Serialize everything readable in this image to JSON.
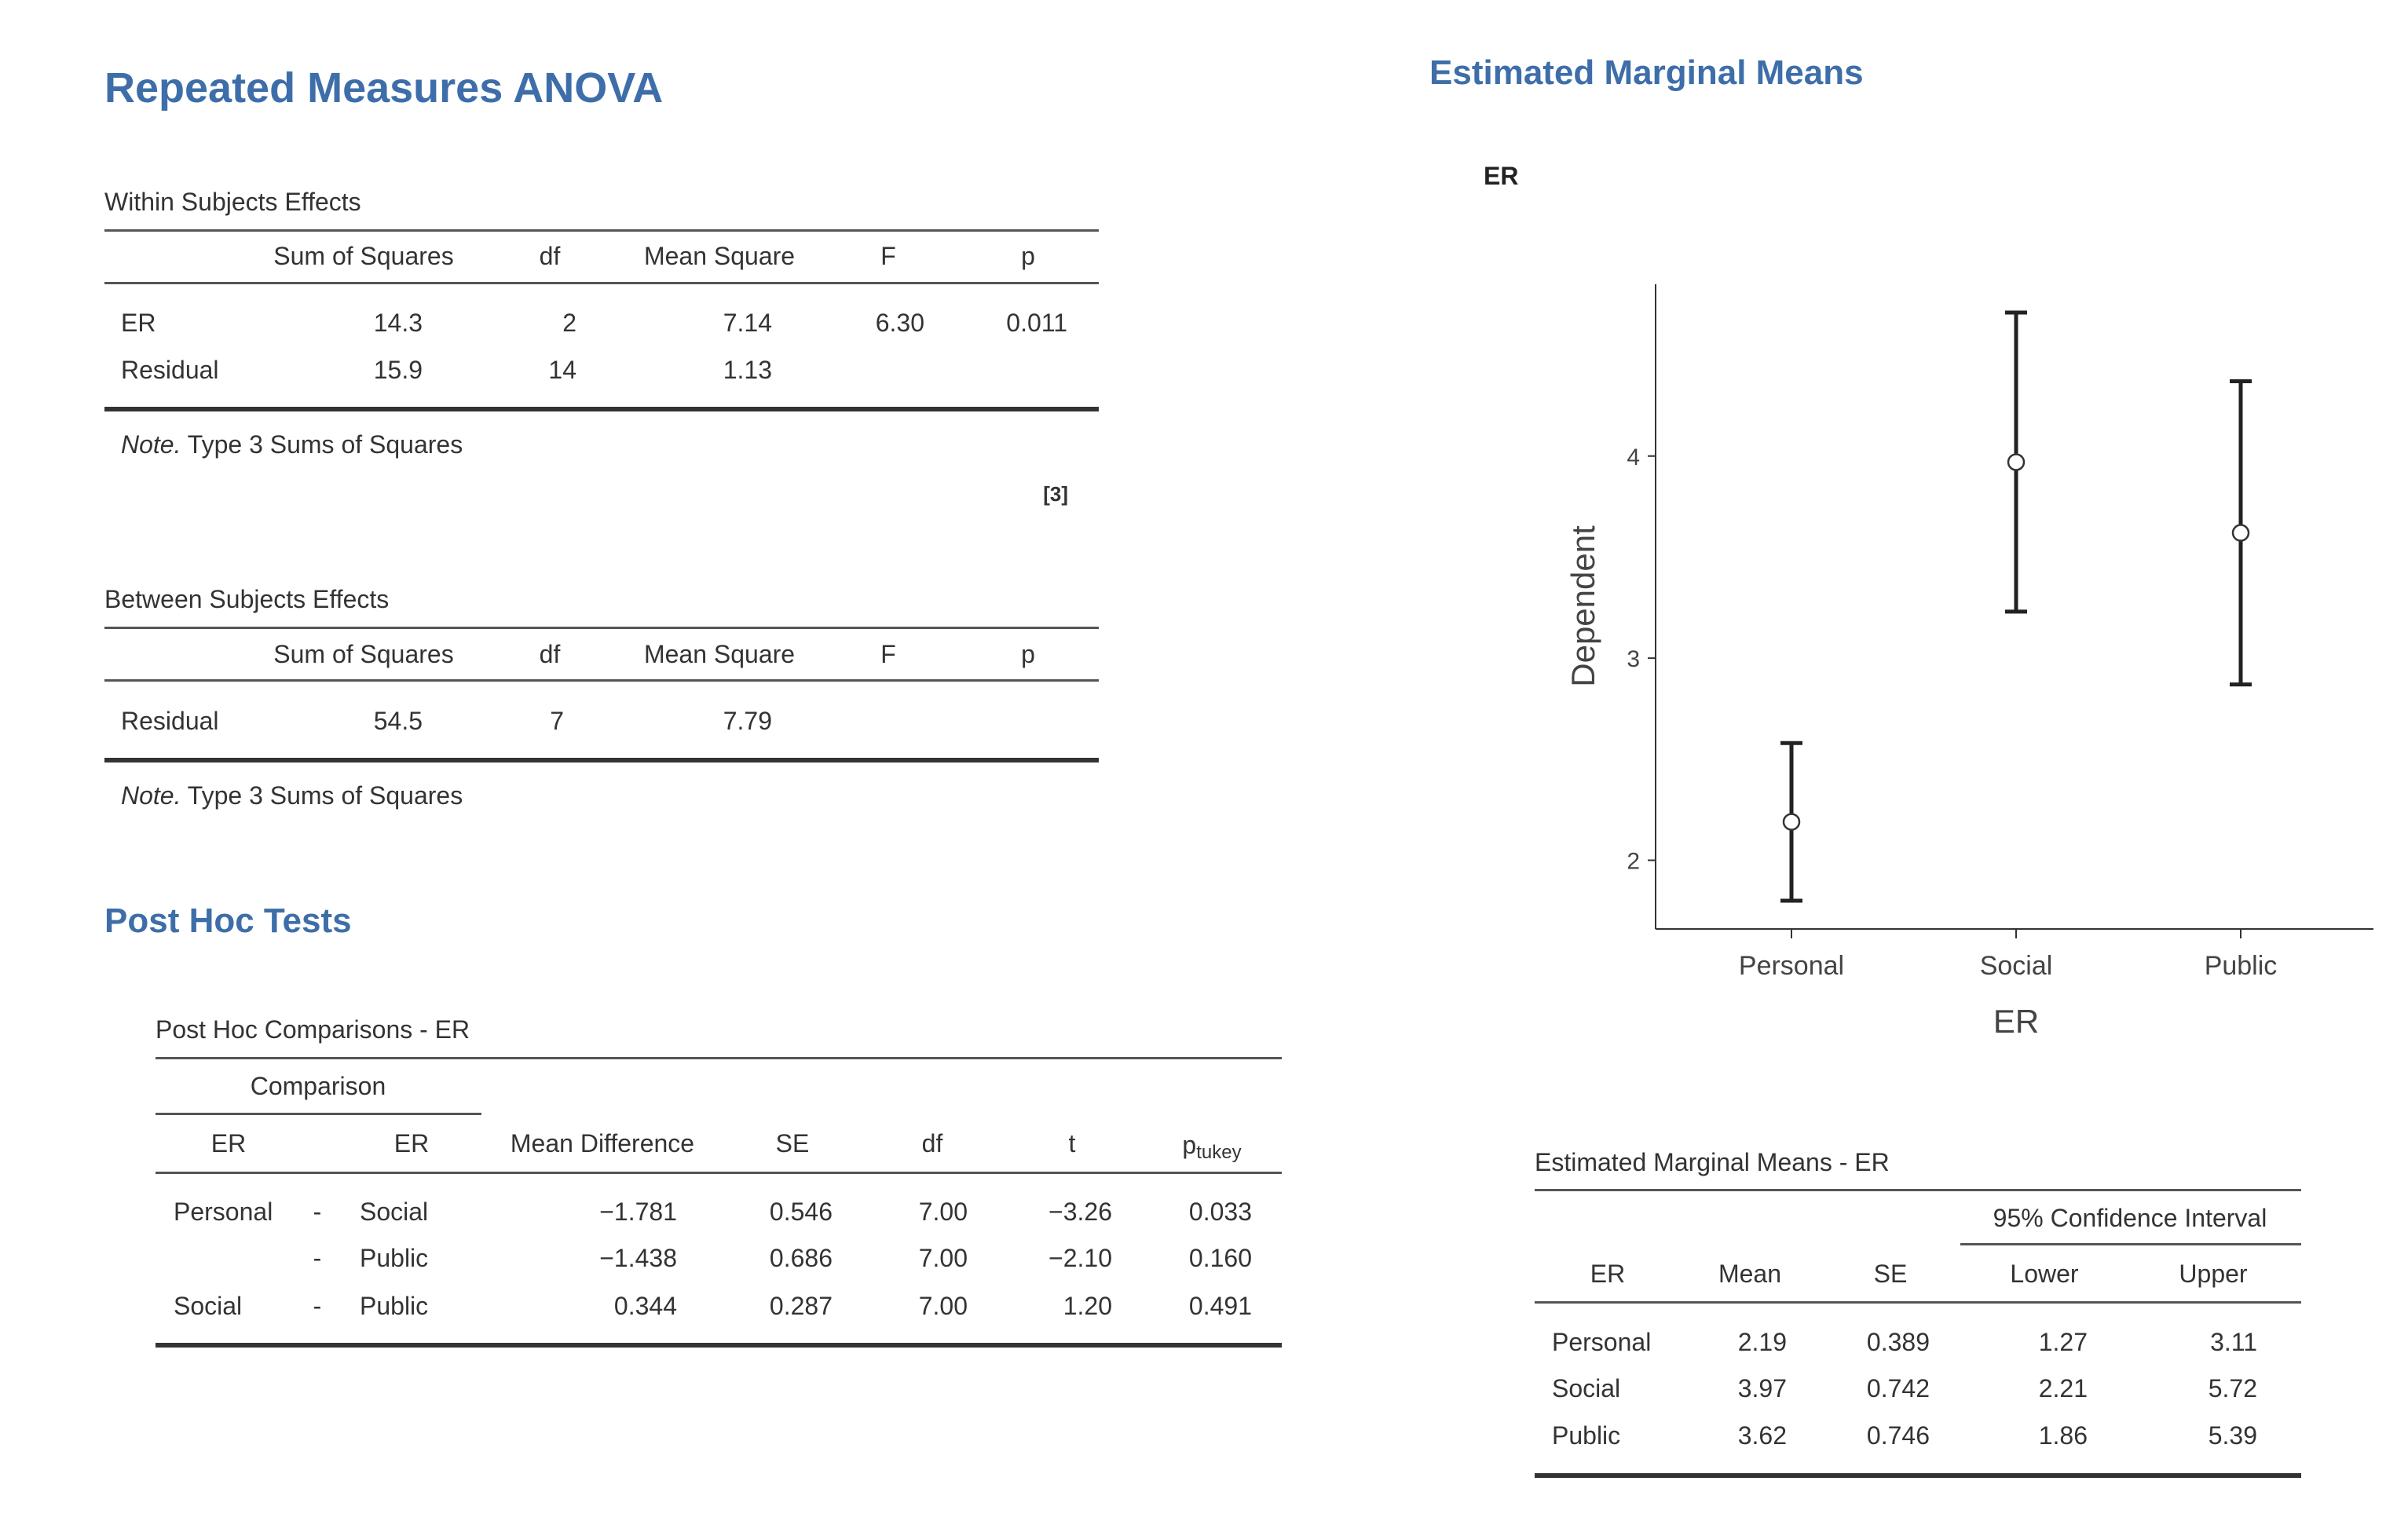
{
  "anova": {
    "title": "Repeated Measures ANOVA",
    "within": {
      "title": "Within Subjects Effects",
      "headers": [
        "",
        "Sum of Squares",
        "df",
        "Mean Square",
        "F",
        "p"
      ],
      "rows": [
        [
          "ER",
          "14.3",
          "2",
          "7.14",
          "6.30",
          "0.011"
        ],
        [
          "Residual",
          "15.9",
          "14",
          "1.13",
          "",
          ""
        ]
      ],
      "note_label": "Note.",
      "note_text": " Type 3 Sums of Squares",
      "reference": "[3]"
    },
    "between": {
      "title": "Between Subjects Effects",
      "headers": [
        "",
        "Sum of Squares",
        "df",
        "Mean Square",
        "F",
        "p"
      ],
      "rows": [
        [
          "Residual",
          "54.5",
          "7",
          "7.79",
          "",
          ""
        ]
      ],
      "note_label": "Note.",
      "note_text": " Type 3 Sums of Squares"
    }
  },
  "posthoc": {
    "title": "Post Hoc Tests",
    "table_title": "Post Hoc Comparisons - ER",
    "group_header": "Comparison",
    "headers": [
      "ER",
      "ER",
      "Mean Difference",
      "SE",
      "df",
      "t",
      "p",
      "tukey"
    ],
    "rows": [
      [
        "Personal",
        "-",
        "Social",
        "−1.781",
        "0.546",
        "7.00",
        "−3.26",
        "0.033"
      ],
      [
        "",
        "-",
        "Public",
        "−1.438",
        "0.686",
        "7.00",
        "−2.10",
        "0.160"
      ],
      [
        "Social",
        "-",
        "Public",
        "0.344",
        "0.287",
        "7.00",
        "1.20",
        "0.491"
      ]
    ]
  },
  "emm": {
    "title": "Estimated Marginal Means",
    "plot_title": "ER",
    "table_title": "Estimated Marginal Means - ER",
    "ci_header": "95% Confidence Interval",
    "headers": [
      "ER",
      "Mean",
      "SE",
      "Lower",
      "Upper"
    ],
    "rows": [
      [
        "Personal",
        "2.19",
        "0.389",
        "1.27",
        "3.11"
      ],
      [
        "Social",
        "3.97",
        "0.742",
        "2.21",
        "5.72"
      ],
      [
        "Public",
        "3.62",
        "0.746",
        "1.86",
        "5.39"
      ]
    ]
  },
  "chart_data": {
    "type": "scatter",
    "title": "ER",
    "xlabel": "ER",
    "ylabel": "Dependent",
    "categories": [
      "Personal",
      "Social",
      "Public"
    ],
    "values": [
      2.19,
      3.97,
      3.62
    ],
    "error_low": [
      1.8,
      3.23,
      2.87
    ],
    "error_high": [
      2.58,
      4.71,
      4.37
    ],
    "yticks": [
      2,
      3,
      4
    ],
    "ylim": [
      1.66,
      4.85
    ],
    "grid": false,
    "colors": {
      "marker_fill": "#ffffff",
      "line": "#222222"
    }
  }
}
